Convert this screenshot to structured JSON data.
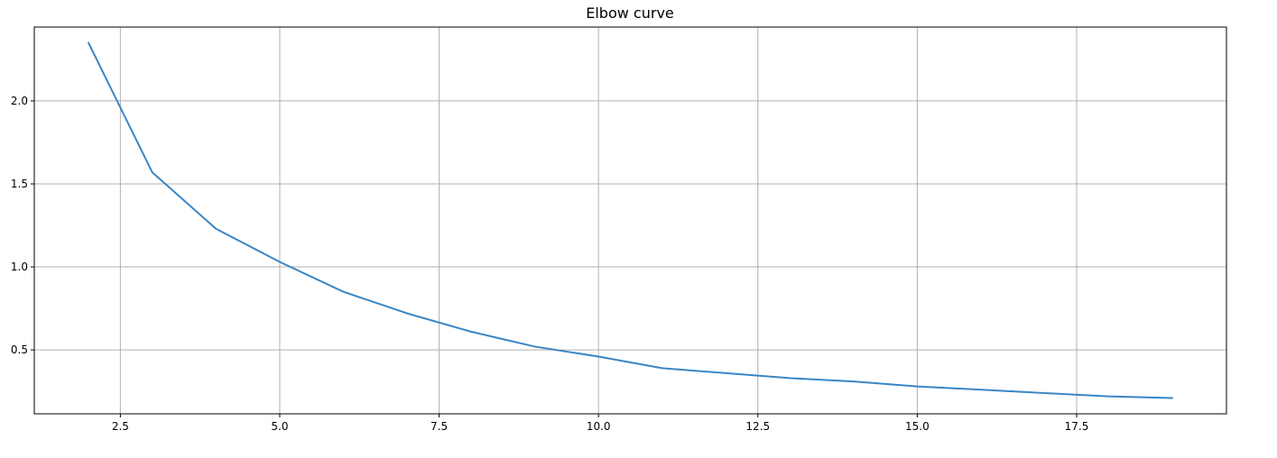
{
  "chart_data": {
    "type": "line",
    "title": "Elbow curve",
    "xlabel": "",
    "ylabel": "",
    "xlim": [
      1.15,
      19.85
    ],
    "ylim": [
      0.115,
      2.445
    ],
    "grid": true,
    "x_ticks": [
      2.5,
      5.0,
      7.5,
      10.0,
      12.5,
      15.0,
      17.5
    ],
    "x_tick_labels": [
      "2.5",
      "5.0",
      "7.5",
      "10.0",
      "12.5",
      "15.0",
      "17.5"
    ],
    "y_ticks": [
      0.5,
      1.0,
      1.5,
      2.0
    ],
    "y_tick_labels": [
      "0.5",
      "1.0",
      "1.5",
      "2.0"
    ],
    "series": [
      {
        "color": "#3a86c4",
        "x": [
          2,
          3,
          4,
          5,
          6,
          7,
          8,
          9,
          10,
          11,
          12,
          13,
          14,
          15,
          16,
          17,
          18,
          19
        ],
        "values": [
          2.35,
          1.57,
          1.23,
          1.03,
          0.85,
          0.72,
          0.61,
          0.52,
          0.46,
          0.39,
          0.36,
          0.33,
          0.31,
          0.28,
          0.26,
          0.24,
          0.22,
          0.21
        ]
      }
    ]
  }
}
